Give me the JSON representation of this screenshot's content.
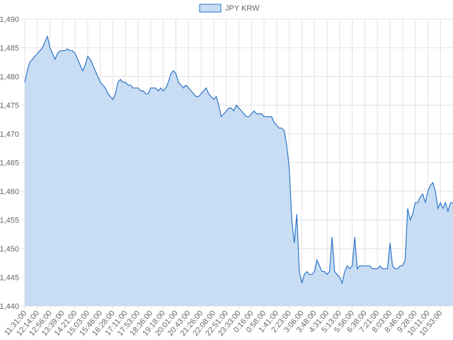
{
  "chart_data": {
    "type": "area",
    "categories": [
      "11:31:00",
      null,
      null,
      null,
      null,
      "12:14:00",
      null,
      null,
      null,
      null,
      "12:56:00",
      null,
      null,
      null,
      null,
      "13:39:00",
      null,
      null,
      null,
      null,
      "14:21:00",
      null,
      null,
      null,
      null,
      "15:03:00",
      null,
      null,
      null,
      null,
      "15:46:00",
      null,
      null,
      null,
      null,
      "16:28:00",
      null,
      null,
      null,
      null,
      "17:11:00",
      null,
      null,
      null,
      null,
      "17:53:00",
      null,
      null,
      null,
      null,
      "18:36:00",
      null,
      null,
      null,
      null,
      "19:18:00",
      null,
      null,
      null,
      null,
      "20:01:00",
      null,
      null,
      null,
      null,
      "20:43:00",
      null,
      null,
      null,
      null,
      "21:26:00",
      null,
      null,
      null,
      null,
      "22:08:00",
      null,
      null,
      null,
      null,
      "22:51:00",
      null,
      null,
      null,
      null,
      "23:33:00",
      null,
      null,
      null,
      null,
      "0:16:00",
      null,
      null,
      null,
      null,
      "0:58:00",
      null,
      null,
      null,
      null,
      "1:41:00",
      null,
      null,
      null,
      null,
      "2:23:00",
      null,
      null,
      null,
      null,
      "3:06:00",
      null,
      null,
      null,
      null,
      "3:48:00",
      null,
      null,
      null,
      null,
      "4:31:00",
      null,
      null,
      null,
      null,
      "5:13:00",
      null,
      null,
      null,
      null,
      "5:56:00",
      null,
      null,
      null,
      null,
      "6:38:00",
      null,
      null,
      null,
      null,
      "7:21:00",
      null,
      null,
      null,
      null,
      "8:03:00",
      null,
      null,
      null,
      null,
      "8:46:00",
      null,
      null,
      null,
      null,
      "9:28:00",
      null,
      null,
      null,
      null,
      "10:11:00",
      null,
      null,
      null,
      null,
      "10:53:00",
      null,
      null,
      null,
      null,
      null
    ],
    "series": [
      {
        "name": "JPY KRW",
        "color": "#2f74c8",
        "fill": "#c8ddf3",
        "values": [
          1479,
          1481,
          1482.5,
          1483,
          1483.5,
          1484,
          1484.5,
          1485,
          1486,
          1487,
          1485,
          1484,
          1483,
          1484,
          1484.5,
          1484.5,
          1484.5,
          1484.8,
          1484.5,
          1484.5,
          1484,
          1483,
          1482,
          1481,
          1482,
          1483.5,
          1483,
          1482,
          1481,
          1480,
          1479,
          1478.5,
          1478,
          1477,
          1476.5,
          1476,
          1477,
          1479,
          1479.5,
          1479,
          1479,
          1478.5,
          1478.5,
          1478,
          1478,
          1478,
          1477.5,
          1477.5,
          1477,
          1477,
          1478,
          1478,
          1478,
          1477.5,
          1478,
          1477.5,
          1478,
          1479,
          1480.5,
          1481,
          1480.5,
          1479,
          1478.5,
          1478,
          1478.5,
          1478,
          1477.5,
          1477,
          1476.5,
          1476.5,
          1477,
          1477.5,
          1478,
          1477,
          1476.5,
          1476,
          1476.5,
          1475,
          1473,
          1473.5,
          1474,
          1474.5,
          1474.5,
          1474,
          1475,
          1474.5,
          1474,
          1473.5,
          1473,
          1473,
          1473.5,
          1474,
          1473.5,
          1473.5,
          1473.5,
          1473,
          1473,
          1473,
          1473,
          1472,
          1471.5,
          1471,
          1471,
          1470.5,
          1468,
          1464,
          1455,
          1451,
          1456,
          1446,
          1444,
          1445.5,
          1446,
          1445.5,
          1445.5,
          1446,
          1448,
          1447,
          1446,
          1446,
          1445.5,
          1446,
          1452,
          1446,
          1445.5,
          1445,
          1444,
          1446,
          1447,
          1446.5,
          1447,
          1452,
          1446.5,
          1447,
          1447,
          1447,
          1447,
          1447,
          1446.5,
          1446.5,
          1446.5,
          1447,
          1446.5,
          1446.5,
          1446.5,
          1451,
          1447,
          1446.5,
          1446.5,
          1447,
          1447,
          1448,
          1457,
          1455,
          1456,
          1458,
          1458,
          1459,
          1459.5,
          1458,
          1460,
          1461,
          1461.5,
          1460,
          1457,
          1458,
          1457,
          1458,
          1456.5,
          1458,
          1458
        ]
      }
    ],
    "ylim": [
      1440,
      1490
    ],
    "yticks": [
      {
        "value": 1440,
        "label": "1,440"
      },
      {
        "value": 1445,
        "label": "1,445"
      },
      {
        "value": 1450,
        "label": "1,450"
      },
      {
        "value": 1455,
        "label": "1,455"
      },
      {
        "value": 1460,
        "label": "1,460"
      },
      {
        "value": 1465,
        "label": "1,465"
      },
      {
        "value": 1470,
        "label": "1,470"
      },
      {
        "value": 1475,
        "label": "1,475"
      },
      {
        "value": 1480,
        "label": "1,480"
      },
      {
        "value": 1485,
        "label": "1,485"
      },
      {
        "value": 1490,
        "label": "1,490"
      }
    ],
    "grid": true,
    "legend": "top"
  }
}
